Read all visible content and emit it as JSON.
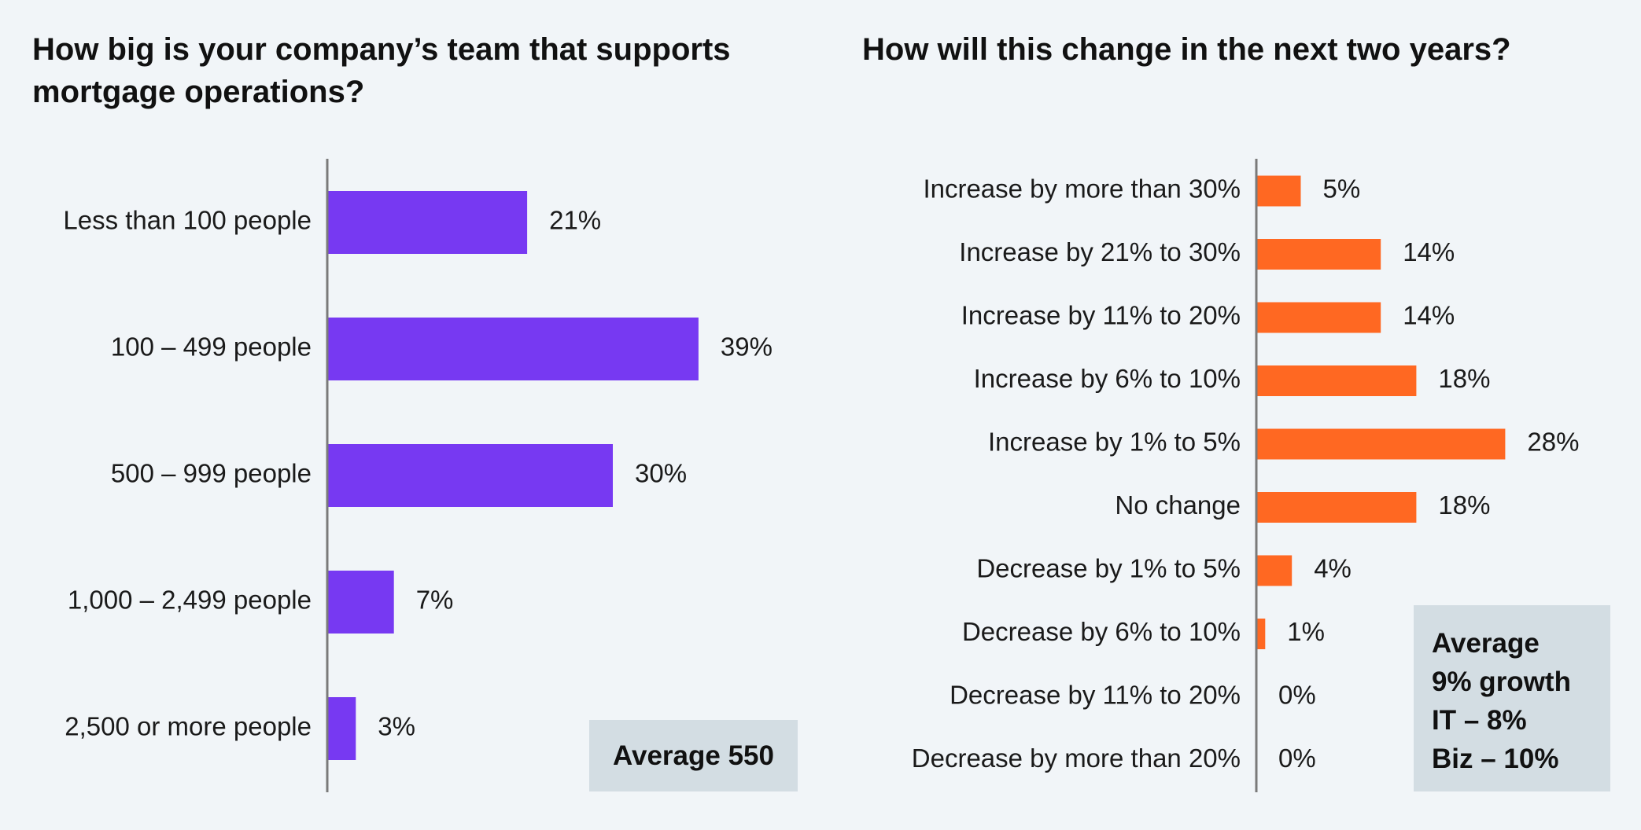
{
  "chart_data": [
    {
      "type": "bar",
      "orientation": "horizontal",
      "title": "How big is your company’s team that supports mortgage operations?",
      "categories": [
        "Less than 100 people",
        "100 – 499 people",
        "500 – 999 people",
        "1,000 – 2,499 people",
        "2,500 or more people"
      ],
      "values": [
        21,
        39,
        30,
        7,
        3
      ],
      "value_labels": [
        "21%",
        "39%",
        "30%",
        "7%",
        "3%"
      ],
      "unit": "%",
      "color": "#7739f2",
      "annotation": "Average 550",
      "grid": false
    },
    {
      "type": "bar",
      "orientation": "horizontal",
      "title": "How will this change in the next two years?",
      "categories": [
        "Increase by more than 30%",
        "Increase by 21% to 30%",
        "Increase by 11% to 20%",
        "Increase by 6% to 10%",
        "Increase by 1% to 5%",
        "No change",
        "Decrease by 1% to 5%",
        "Decrease by 6% to 10%",
        "Decrease by 11% to 20%",
        "Decrease by more than 20%"
      ],
      "values": [
        5,
        14,
        14,
        18,
        28,
        18,
        4,
        1,
        0,
        0
      ],
      "value_labels": [
        "5%",
        "14%",
        "14%",
        "18%",
        "28%",
        "18%",
        "4%",
        "1%",
        "0%",
        "0%"
      ],
      "unit": "%",
      "color": "#ff6822",
      "annotation": [
        "Average",
        "9% growth",
        "IT – 8%",
        "Biz – 10%"
      ],
      "grid": false
    }
  ]
}
